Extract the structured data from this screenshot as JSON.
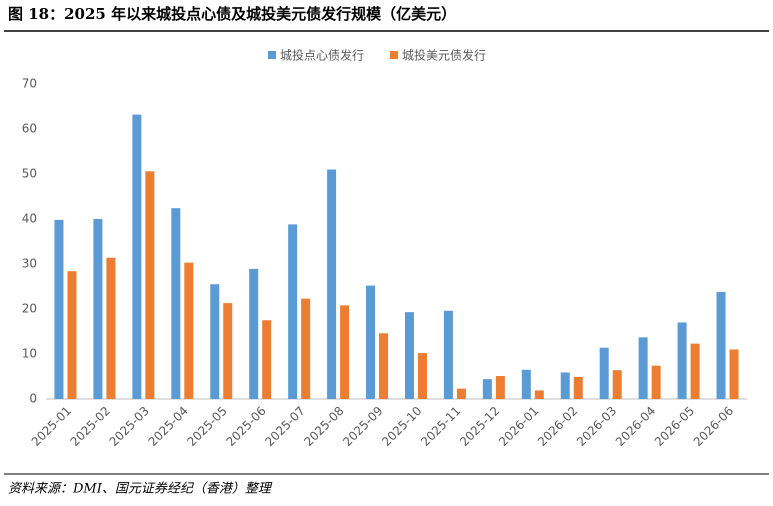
{
  "chart_data": {
    "type": "bar",
    "title": "图 18：2025 年以来城投点心债及城投美元债发行规模（亿美元）",
    "source": "资料来源：DMI、国元证券经纪（香港）整理",
    "categories": [
      "2025-01",
      "2025-02",
      "2025-03",
      "2025-04",
      "2025-05",
      "2025-06",
      "2025-07",
      "2025-08",
      "2025-09",
      "2025-10",
      "2025-11",
      "2025-12",
      "2026-01",
      "2026-02",
      "2026-03",
      "2026-04",
      "2026-05",
      "2026-06"
    ],
    "series": [
      {
        "name": "城投点心债发行",
        "color": "#5b9bd5",
        "values": [
          39.8,
          40,
          63.2,
          42.4,
          25.5,
          28.9,
          38.8,
          51,
          25.2,
          19.3,
          19.6,
          4.4,
          6.5,
          5.9,
          11.4,
          13.7,
          17,
          23.8
        ]
      },
      {
        "name": "城投美元债发行",
        "color": "#ed7d31",
        "values": [
          28.4,
          31.4,
          50.6,
          30.3,
          21.3,
          17.5,
          22.3,
          20.8,
          14.6,
          10.2,
          2.3,
          5.1,
          1.9,
          4.9,
          6.4,
          7.4,
          12.3,
          11
        ]
      }
    ],
    "ylim": [
      0,
      70
    ],
    "yticks": [
      0,
      10,
      20,
      30,
      40,
      50,
      60,
      70
    ],
    "grid": false,
    "legend": "top"
  }
}
